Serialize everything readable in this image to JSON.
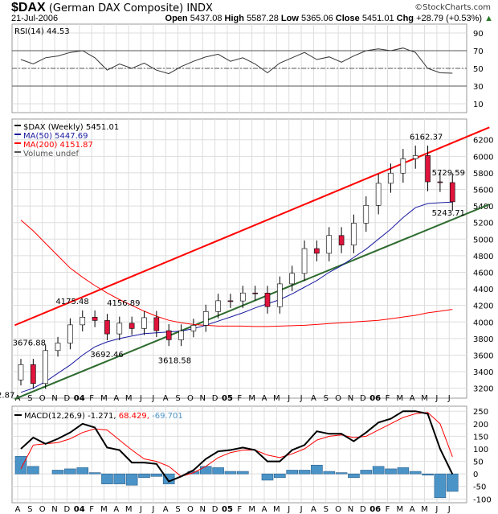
{
  "header": {
    "symbol": "$DAX",
    "name": "(German DAX Composite)",
    "exchange": "INDX",
    "copyright": "©StockCharts.com",
    "date": "21-Jul-2006",
    "open_label": "Open",
    "open": "5437.08",
    "high_label": "High",
    "high": "5587.28",
    "low_label": "Low",
    "low": "5365.06",
    "close_label": "Close",
    "close": "5451.01",
    "chg_label": "Chg",
    "chg": "+28.79 (+0.53%)"
  },
  "colors": {
    "up": "#ffffff",
    "down": "#e0143c",
    "ma50": "#1a1aa0",
    "ma200": "#ff0000",
    "trend_upper": "#ff0000",
    "trend_lower": "#2e6b2e",
    "macd": "#000000",
    "signal": "#ff0000",
    "hist": "#4b94c8"
  },
  "chart_data": [
    {
      "type": "line",
      "title": "RSI(14) 44.53",
      "yticks": [
        10,
        30,
        50,
        70,
        90
      ],
      "ylim": [
        0,
        100
      ],
      "values": [
        60,
        55,
        62,
        64,
        68,
        70,
        62,
        48,
        55,
        50,
        56,
        48,
        44,
        52,
        58,
        63,
        66,
        58,
        62,
        55,
        45,
        56,
        62,
        68,
        60,
        63,
        57,
        64,
        70,
        72,
        70,
        73,
        68,
        50,
        45,
        44.53
      ]
    },
    {
      "type": "candlestick",
      "legend": [
        "$DAX (Weekly) 5451.01",
        "MA(50) 5447.69",
        "MA(200) 4151.87",
        "Volume undef"
      ],
      "yticks": [
        3200,
        3400,
        3600,
        3800,
        4000,
        4200,
        4400,
        4600,
        4800,
        5000,
        5200,
        5400,
        5600,
        5800,
        6000,
        6200
      ],
      "ylim": [
        3080,
        6450
      ],
      "months": [
        "A",
        "S",
        "O",
        "N",
        "D",
        "04",
        "F",
        "M",
        "A",
        "M",
        "J",
        "J",
        "A",
        "S",
        "O",
        "N",
        "D",
        "05",
        "F",
        "M",
        "A",
        "M",
        "J",
        "J",
        "A",
        "S",
        "O",
        "N",
        "D",
        "06",
        "F",
        "M",
        "A",
        "M",
        "J",
        "J"
      ],
      "close": [
        3485,
        3257,
        3655,
        3745,
        3965,
        4058,
        4018,
        3856,
        3985,
        3921,
        4052,
        3895,
        3785,
        3893,
        3960,
        4126,
        4256,
        4254,
        4350,
        4349,
        4185,
        4460,
        4587,
        4886,
        4829,
        5044,
        4929,
        5193,
        5408,
        5674,
        5797,
        5970,
        6009,
        5692,
        5683,
        5451
      ],
      "ma50": [
        3150,
        3200,
        3280,
        3380,
        3480,
        3600,
        3700,
        3760,
        3800,
        3830,
        3860,
        3870,
        3880,
        3890,
        3920,
        3960,
        4010,
        4060,
        4110,
        4170,
        4220,
        4270,
        4340,
        4420,
        4500,
        4600,
        4680,
        4780,
        4880,
        5000,
        5120,
        5260,
        5380,
        5430,
        5440,
        5447.69
      ],
      "ma200": [
        5230,
        5100,
        4950,
        4800,
        4650,
        4540,
        4440,
        4350,
        4270,
        4200,
        4130,
        4070,
        4020,
        3990,
        3970,
        3960,
        3950,
        3950,
        3950,
        3945,
        3945,
        3950,
        3955,
        3960,
        3970,
        3980,
        3990,
        4000,
        4010,
        4020,
        4040,
        4060,
        4080,
        4110,
        4130,
        4151.87
      ],
      "trendlines": [
        {
          "name": "upper",
          "from": [
            -0.5,
            3960
          ],
          "to": [
            38,
            6350
          ]
        },
        {
          "name": "lower",
          "from": [
            -0.5,
            3070
          ],
          "to": [
            38,
            5420
          ]
        }
      ],
      "annotations": [
        {
          "i": 0.5,
          "v": 3676.88,
          "text": "3676.88"
        },
        {
          "i": 1.3,
          "v": 3202.87,
          "text": "3202.87"
        },
        {
          "i": 5,
          "v": 4175.48,
          "text": "4175.48"
        },
        {
          "i": 7.5,
          "v": 4156.89,
          "text": "4156.89"
        },
        {
          "i": 6.8,
          "v": 3692.46,
          "text": "3692.46"
        },
        {
          "i": 12.3,
          "v": 3618.58,
          "text": "3618.58"
        },
        {
          "i": 32.7,
          "v": 6162.37,
          "text": "6162.37"
        },
        {
          "i": 34.5,
          "v": 5729.59,
          "text": "5729.59"
        },
        {
          "i": 34.5,
          "v": 5243.71,
          "text": "5243.71"
        }
      ]
    },
    {
      "type": "line+bar",
      "legend": [
        "MACD(12,26,9) -1.271,",
        "68.429,",
        "-69.701"
      ],
      "yticks": [
        -100,
        -50,
        0,
        50,
        100,
        150,
        200,
        250
      ],
      "ylim": [
        -115,
        270
      ],
      "macd": [
        100,
        145,
        120,
        140,
        165,
        200,
        185,
        105,
        95,
        45,
        45,
        40,
        -30,
        -10,
        15,
        60,
        90,
        95,
        105,
        95,
        50,
        50,
        95,
        115,
        170,
        160,
        160,
        130,
        165,
        205,
        220,
        250,
        250,
        240,
        100,
        -1.271
      ],
      "signal": [
        20,
        115,
        120,
        125,
        140,
        165,
        180,
        175,
        135,
        95,
        60,
        50,
        30,
        -10,
        5,
        30,
        65,
        85,
        95,
        95,
        75,
        65,
        80,
        100,
        135,
        150,
        155,
        145,
        150,
        175,
        200,
        225,
        240,
        245,
        200,
        68.429
      ],
      "hist": [
        70,
        30,
        0,
        15,
        20,
        25,
        5,
        -40,
        -40,
        -45,
        -15,
        -10,
        -40,
        0,
        10,
        30,
        25,
        10,
        10,
        0,
        -25,
        -15,
        15,
        15,
        35,
        10,
        5,
        -15,
        15,
        30,
        20,
        25,
        10,
        -5,
        -95,
        -69.701
      ]
    }
  ]
}
